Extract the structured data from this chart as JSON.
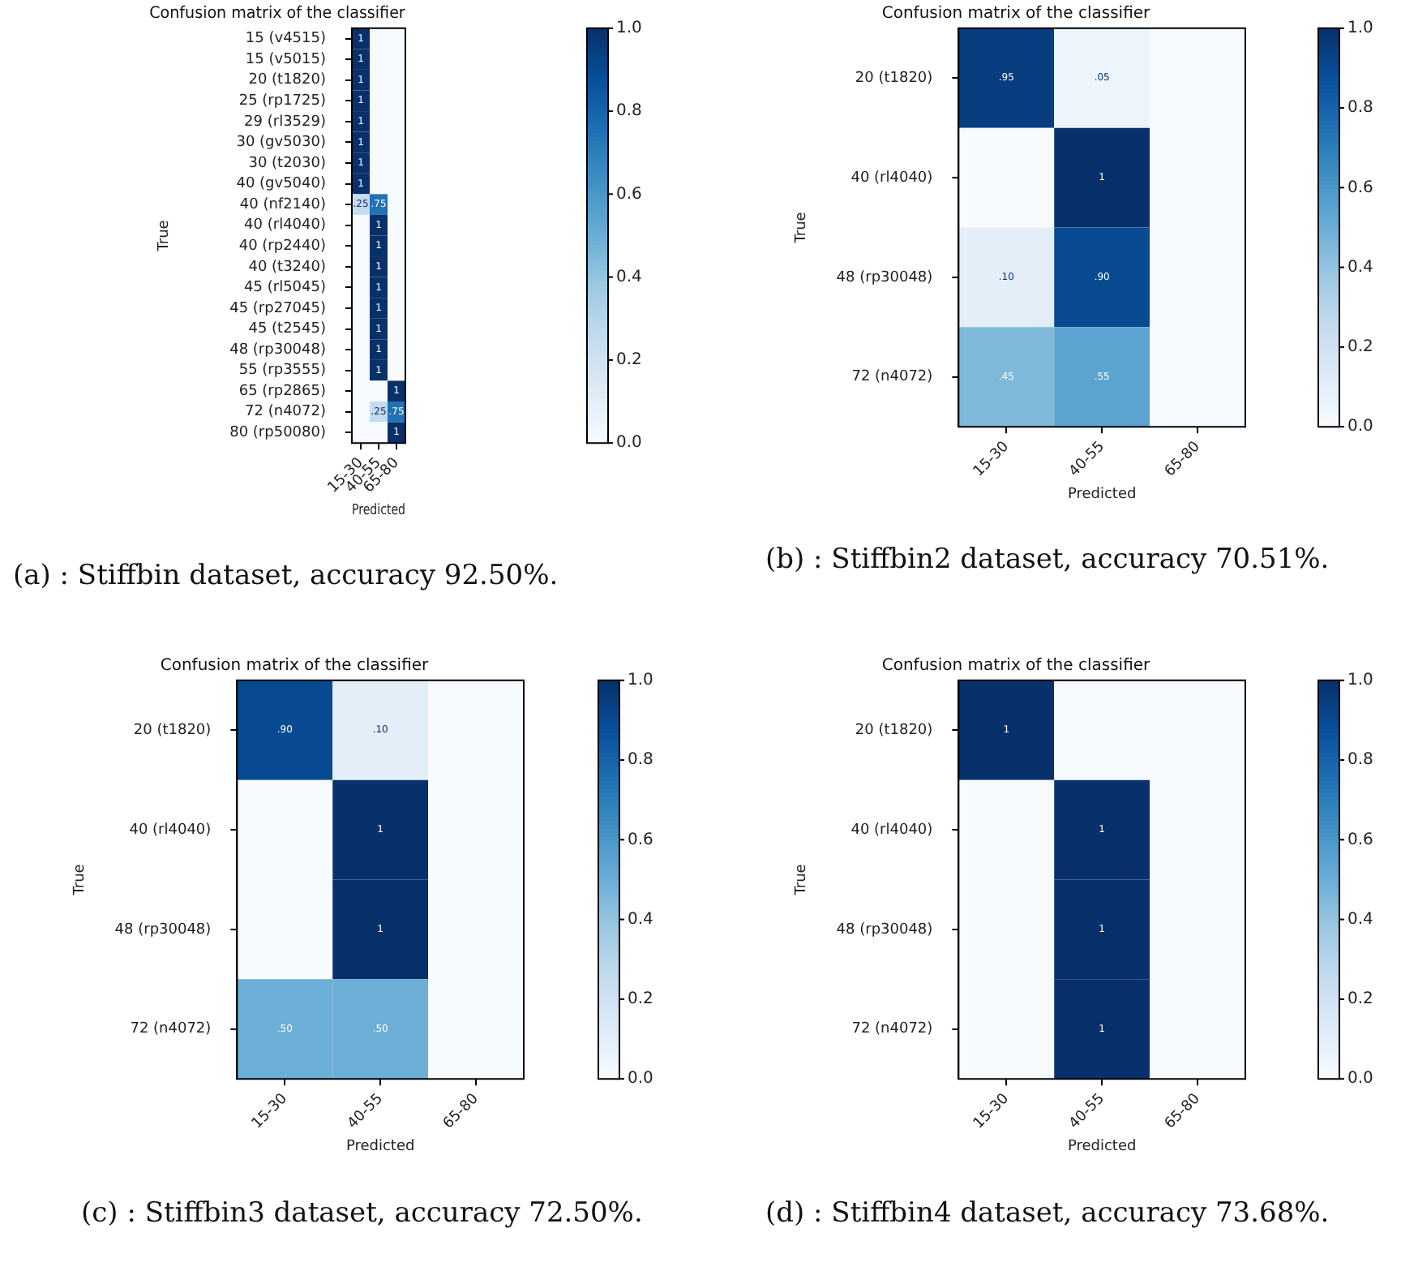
{
  "chart_data": [
    {
      "type": "heatmap",
      "title": "Confusion matrix of the classifier",
      "xlabel": "Predicted",
      "ylabel": "True",
      "categories": [
        "15-30",
        "40-55",
        "65-80"
      ],
      "y_categories": [
        "15 (v4515)",
        "15 (v5015)",
        "20 (t1820)",
        "25 (rp1725)",
        "29 (rl3529)",
        "30 (gv5030)",
        "30 (t2030)",
        "40 (gv5040)",
        "40 (nf2140)",
        "40 (rl4040)",
        "40 (rp2440)",
        "40 (t3240)",
        "45 (rl5045)",
        "45 (rp27045)",
        "45 (t2545)",
        "48 (rp30048)",
        "55 (rp3555)",
        "65 (rp2865)",
        "72 (n4072)",
        "80 (rp50080)"
      ],
      "cells": [
        [
          1,
          0,
          0
        ],
        [
          1,
          0,
          0
        ],
        [
          1,
          0,
          0
        ],
        [
          1,
          0,
          0
        ],
        [
          1,
          0,
          0
        ],
        [
          1,
          0,
          0
        ],
        [
          1,
          0,
          0
        ],
        [
          1,
          0,
          0
        ],
        [
          0.25,
          0.75,
          0
        ],
        [
          0,
          1,
          0
        ],
        [
          0,
          1,
          0
        ],
        [
          0,
          1,
          0
        ],
        [
          0,
          1,
          0
        ],
        [
          0,
          1,
          0
        ],
        [
          0,
          1,
          0
        ],
        [
          0,
          1,
          0
        ],
        [
          0,
          1,
          0
        ],
        [
          0,
          0,
          1
        ],
        [
          0,
          0.25,
          0.75
        ],
        [
          0,
          0,
          1
        ]
      ],
      "cell_labels": [
        [
          "1",
          null,
          null
        ],
        [
          "1",
          null,
          null
        ],
        [
          "1",
          null,
          null
        ],
        [
          "1",
          null,
          null
        ],
        [
          "1",
          null,
          null
        ],
        [
          "1",
          null,
          null
        ],
        [
          "1",
          null,
          null
        ],
        [
          "1",
          null,
          null
        ],
        [
          ".25",
          ".75",
          null
        ],
        [
          null,
          "1",
          null
        ],
        [
          null,
          "1",
          null
        ],
        [
          null,
          "1",
          null
        ],
        [
          null,
          "1",
          null
        ],
        [
          null,
          "1",
          null
        ],
        [
          null,
          "1",
          null
        ],
        [
          null,
          "1",
          null
        ],
        [
          null,
          "1",
          null
        ],
        [
          null,
          null,
          "1"
        ],
        [
          null,
          ".25",
          ".75"
        ],
        [
          null,
          null,
          "1"
        ]
      ],
      "clim": [
        0,
        1
      ],
      "cticks": [
        {
          "value": 0,
          "label": "0.0"
        },
        {
          "value": 0.2,
          "label": "0.2"
        },
        {
          "value": 0.4,
          "label": "0.4"
        },
        {
          "value": 0.6,
          "label": "0.6"
        },
        {
          "value": 0.8,
          "label": "0.8"
        },
        {
          "value": 1,
          "label": "1.0"
        }
      ],
      "annotations": [
        "(a) : Stiffbin dataset, accuracy 92.50%."
      ]
    },
    {
      "type": "heatmap",
      "title": "Confusion matrix of the classifier",
      "xlabel": "Predicted",
      "ylabel": "True",
      "categories": [
        "15-30",
        "40-55",
        "65-80"
      ],
      "y_categories": [
        "20 (t1820)",
        "40 (rl4040)",
        "48 (rp30048)",
        "72 (n4072)"
      ],
      "cells": [
        [
          0.95,
          0.05,
          0
        ],
        [
          0,
          1,
          0
        ],
        [
          0.1,
          0.9,
          0
        ],
        [
          0.45,
          0.55,
          0
        ]
      ],
      "cell_labels": [
        [
          ".95",
          ".05",
          null
        ],
        [
          null,
          "1",
          null
        ],
        [
          ".10",
          ".90",
          null
        ],
        [
          ".45",
          ".55",
          null
        ]
      ],
      "clim": [
        0,
        1
      ],
      "cticks": [
        {
          "value": 0,
          "label": "0.0"
        },
        {
          "value": 0.2,
          "label": "0.2"
        },
        {
          "value": 0.4,
          "label": "0.4"
        },
        {
          "value": 0.6,
          "label": "0.6"
        },
        {
          "value": 0.8,
          "label": "0.8"
        },
        {
          "value": 1,
          "label": "1.0"
        }
      ],
      "annotations": [
        "(b) : Stiffbin2 dataset, accuracy 70.51%."
      ]
    },
    {
      "type": "heatmap",
      "title": "Confusion matrix of the classifier",
      "xlabel": "Predicted",
      "ylabel": "True",
      "categories": [
        "15-30",
        "40-55",
        "65-80"
      ],
      "y_categories": [
        "20 (t1820)",
        "40 (rl4040)",
        "48 (rp30048)",
        "72 (n4072)"
      ],
      "cells": [
        [
          0.9,
          0.1,
          0
        ],
        [
          0,
          1,
          0
        ],
        [
          0,
          1,
          0
        ],
        [
          0.5,
          0.5,
          0
        ]
      ],
      "cell_labels": [
        [
          ".90",
          ".10",
          null
        ],
        [
          null,
          "1",
          null
        ],
        [
          null,
          "1",
          null
        ],
        [
          ".50",
          ".50",
          null
        ]
      ],
      "clim": [
        0,
        1
      ],
      "cticks": [
        {
          "value": 0,
          "label": "0.0"
        },
        {
          "value": 0.2,
          "label": "0.2"
        },
        {
          "value": 0.4,
          "label": "0.4"
        },
        {
          "value": 0.6,
          "label": "0.6"
        },
        {
          "value": 0.8,
          "label": "0.8"
        },
        {
          "value": 1,
          "label": "1.0"
        }
      ],
      "annotations": [
        "(c) : Stiffbin3 dataset, accuracy 72.50%."
      ]
    },
    {
      "type": "heatmap",
      "title": "Confusion matrix of the classifier",
      "xlabel": "Predicted",
      "ylabel": "True",
      "categories": [
        "15-30",
        "40-55",
        "65-80"
      ],
      "y_categories": [
        "20 (t1820)",
        "40 (rl4040)",
        "48 (rp30048)",
        "72 (n4072)"
      ],
      "cells": [
        [
          1,
          0,
          0
        ],
        [
          0,
          1,
          0
        ],
        [
          0,
          1,
          0
        ],
        [
          0,
          1,
          0
        ]
      ],
      "cell_labels": [
        [
          "1",
          null,
          null
        ],
        [
          null,
          "1",
          null
        ],
        [
          null,
          "1",
          null
        ],
        [
          null,
          "1",
          null
        ]
      ],
      "clim": [
        0,
        1
      ],
      "cticks": [
        {
          "value": 0,
          "label": "0.0"
        },
        {
          "value": 0.2,
          "label": "0.2"
        },
        {
          "value": 0.4,
          "label": "0.4"
        },
        {
          "value": 0.6,
          "label": "0.6"
        },
        {
          "value": 0.8,
          "label": "0.8"
        },
        {
          "value": 1,
          "label": "1.0"
        }
      ],
      "annotations": [
        "(d) : Stiffbin4 dataset, accuracy 73.68%."
      ]
    }
  ]
}
